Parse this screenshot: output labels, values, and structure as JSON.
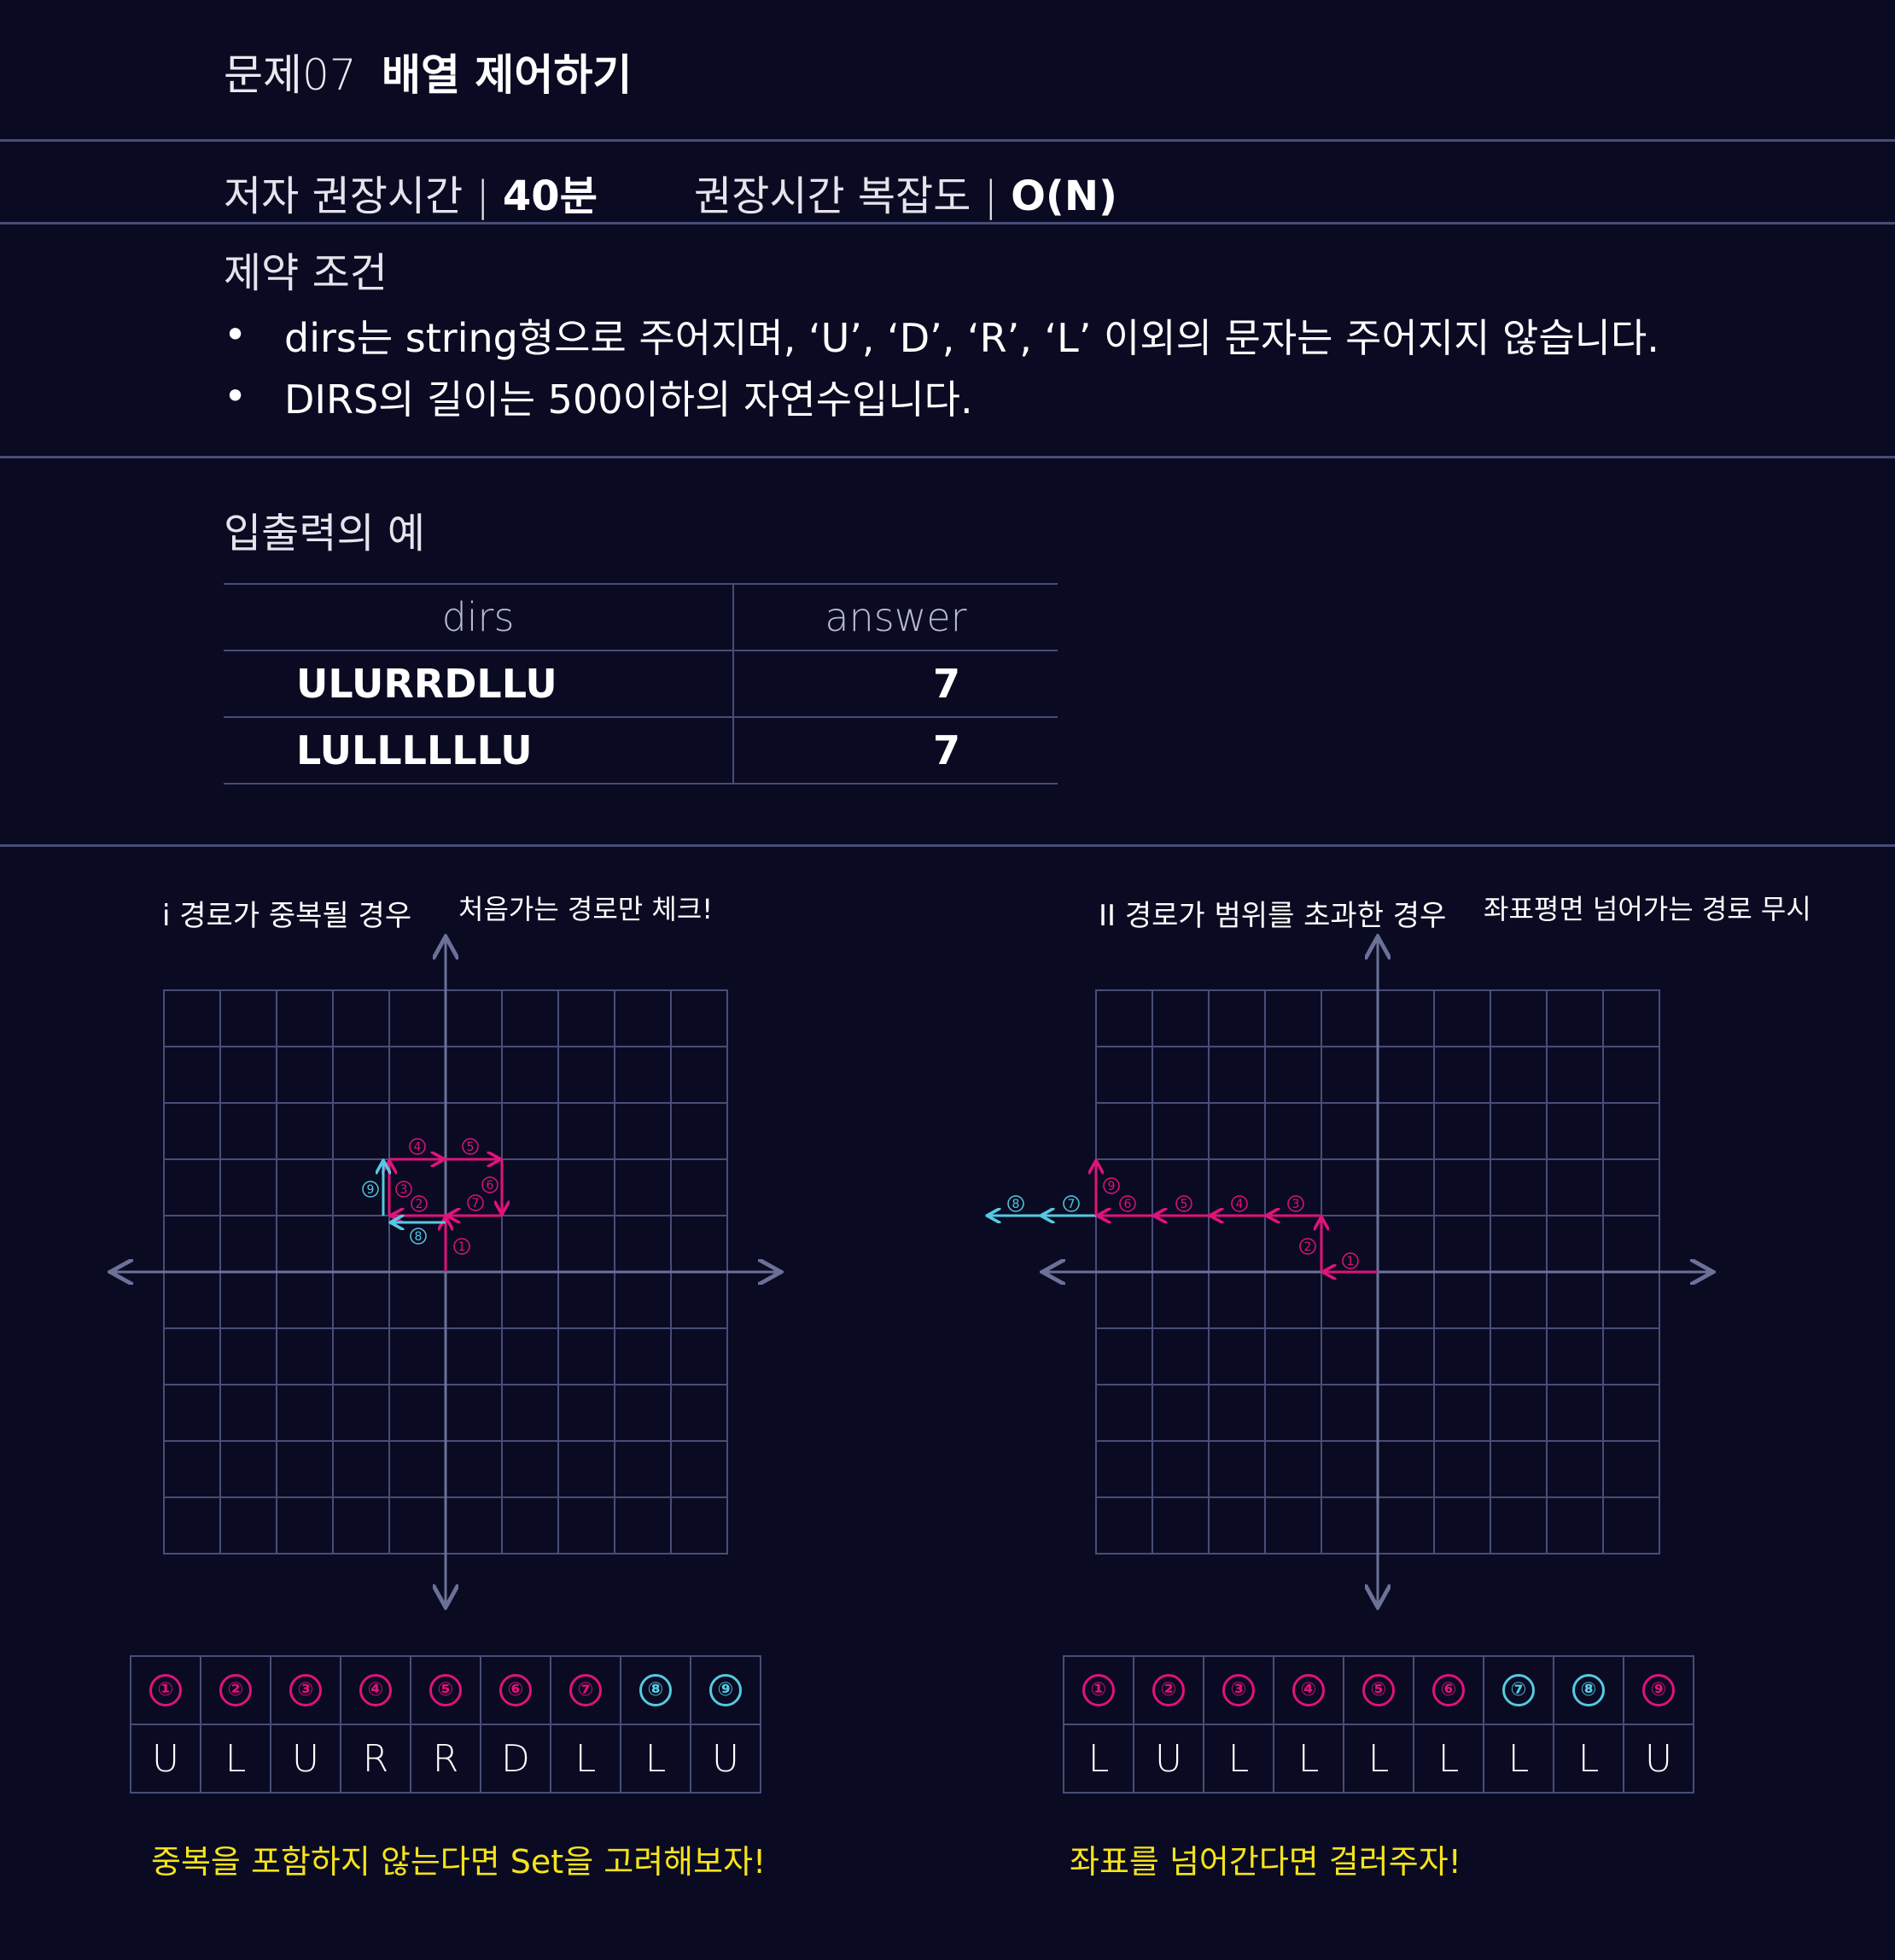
{
  "header": {
    "problem_number": "문제07",
    "problem_title": "배열 제어하기"
  },
  "meta": {
    "time_label": "저자 권장시간 | ",
    "time_value": "40분",
    "complexity_label": "권장시간 복잡도 | ",
    "complexity_value": "O(N)"
  },
  "constraints": {
    "title": "제약 조건",
    "bullet": "•",
    "items": [
      "dirs는 string형으로 주어지며, ‘U’, ‘D’, ‘R’, ‘L’ 이외의 문자는 주어지지 않습니다.",
      "DIRS의 길이는 500이하의 자연수입니다."
    ]
  },
  "examples": {
    "title": "입출력의 예",
    "headers": [
      "dirs",
      "answer"
    ],
    "rows": [
      [
        "ULURRDLLU",
        "7"
      ],
      [
        "LULLLLLLU",
        "7"
      ]
    ]
  },
  "diagram_left": {
    "caption": "i 경로가 중복될 경우",
    "note": "처음가는 경로만 체크!",
    "steps": [
      "①",
      "②",
      "③",
      "④",
      "⑤",
      "⑥",
      "⑦",
      "⑧",
      "⑨"
    ],
    "step_colors": [
      "pink",
      "pink",
      "pink",
      "pink",
      "pink",
      "pink",
      "pink",
      "cyan",
      "cyan"
    ],
    "moves": [
      "U",
      "L",
      "U",
      "R",
      "R",
      "D",
      "L",
      "L",
      "U"
    ],
    "tip": "중복을 포함하지 않는다면 Set을 고려해보자!"
  },
  "diagram_right": {
    "caption": "II 경로가 범위를 초과한 경우",
    "note": "좌표평면 넘어가는 경로 무시",
    "steps": [
      "①",
      "②",
      "③",
      "④",
      "⑤",
      "⑥",
      "⑦",
      "⑧",
      "⑨"
    ],
    "step_colors": [
      "pink",
      "pink",
      "pink",
      "pink",
      "pink",
      "pink",
      "cyan",
      "cyan",
      "pink"
    ],
    "moves": [
      "L",
      "U",
      "L",
      "L",
      "L",
      "L",
      "L",
      "L",
      "U"
    ],
    "tip": "좌표를 넘어간다면 걸러주자!"
  },
  "colors": {
    "background": "#0a0b22",
    "grid": "#474d78",
    "path_pink": "#e0137a",
    "path_cyan": "#56c9e3",
    "tip_yellow": "#f6e31b"
  }
}
